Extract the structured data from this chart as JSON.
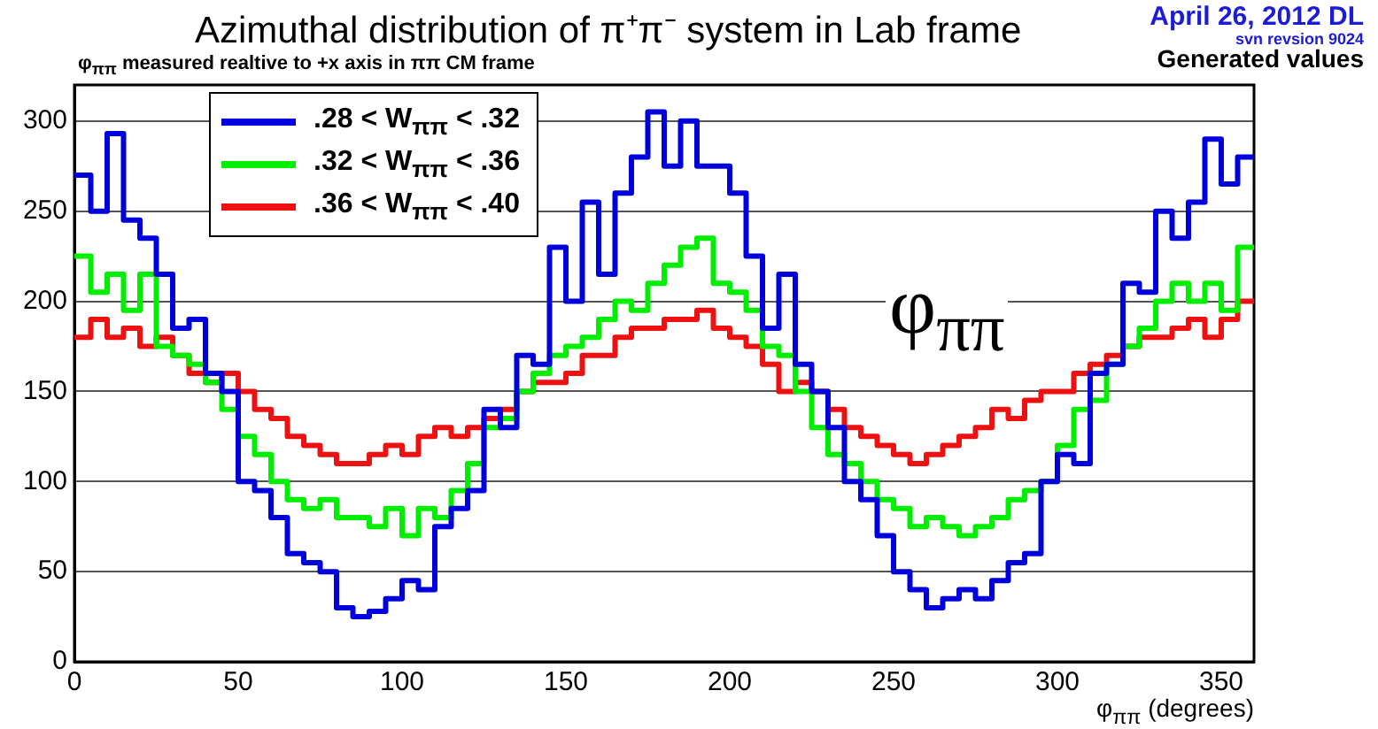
{
  "chart_data": {
    "type": "histogram",
    "title": "Azimuthal distribution of π⁺π⁻ system in Lab frame",
    "subtitle": "φ$_{ππ}$ measured realtive to +x axis in ππ CM frame",
    "xlabel": "φ$_{ππ}$ (degrees)",
    "annotations": [
      "April 26, 2012 DL",
      "svn revsion 9024",
      "Generated values",
      "φ$_{ππ}$"
    ],
    "bins": [
      0,
      5,
      10,
      15,
      20,
      25,
      30,
      35,
      40,
      45,
      50,
      55,
      60,
      65,
      70,
      75,
      80,
      85,
      90,
      95,
      100,
      105,
      110,
      115,
      120,
      125,
      130,
      135,
      140,
      145,
      150,
      155,
      160,
      165,
      170,
      175,
      180,
      185,
      190,
      195,
      200,
      205,
      210,
      215,
      220,
      225,
      230,
      235,
      240,
      245,
      250,
      255,
      260,
      265,
      270,
      275,
      280,
      285,
      290,
      295,
      300,
      305,
      310,
      315,
      320,
      325,
      330,
      335,
      340,
      345,
      350,
      355,
      360
    ],
    "series": [
      {
        "name": ".28 < W$_{ππ}$ < .32",
        "color": "#0000dd",
        "values": [
          270,
          250,
          293,
          245,
          235,
          215,
          185,
          190,
          160,
          150,
          100,
          95,
          80,
          60,
          55,
          50,
          30,
          25,
          28,
          35,
          45,
          40,
          75,
          85,
          95,
          140,
          130,
          170,
          165,
          230,
          200,
          255,
          215,
          260,
          280,
          305,
          275,
          300,
          275,
          275,
          260,
          225,
          185,
          215,
          165,
          150,
          130,
          100,
          90,
          70,
          50,
          40,
          30,
          35,
          40,
          35,
          45,
          55,
          60,
          100,
          115,
          110,
          160,
          165,
          210,
          205,
          250,
          235,
          255,
          290,
          265,
          280
        ]
      },
      {
        "name": ".32 < W$_{ππ}$ < .36",
        "color": "#00ee00",
        "values": [
          225,
          205,
          215,
          195,
          215,
          175,
          170,
          165,
          155,
          140,
          125,
          115,
          100,
          90,
          85,
          90,
          80,
          80,
          75,
          85,
          70,
          85,
          80,
          95,
          110,
          130,
          135,
          150,
          160,
          170,
          175,
          180,
          190,
          200,
          195,
          210,
          220,
          230,
          235,
          210,
          205,
          195,
          175,
          170,
          150,
          130,
          115,
          110,
          100,
          90,
          85,
          75,
          80,
          75,
          70,
          75,
          80,
          90,
          95,
          100,
          120,
          140,
          145,
          165,
          175,
          185,
          200,
          210,
          200,
          210,
          195,
          230
        ]
      },
      {
        "name": ".36 < W$_{ππ}$ < .40",
        "color": "#ee1111",
        "values": [
          180,
          190,
          180,
          185,
          175,
          180,
          170,
          160,
          155,
          160,
          150,
          140,
          135,
          125,
          120,
          115,
          110,
          110,
          115,
          120,
          115,
          125,
          130,
          125,
          130,
          135,
          140,
          150,
          155,
          155,
          160,
          170,
          170,
          180,
          185,
          185,
          190,
          190,
          195,
          185,
          180,
          175,
          165,
          150,
          155,
          150,
          140,
          130,
          125,
          120,
          115,
          110,
          115,
          120,
          125,
          130,
          140,
          135,
          145,
          150,
          150,
          160,
          165,
          170,
          175,
          180,
          180,
          185,
          190,
          180,
          190,
          200
        ]
      }
    ],
    "xlim": [
      0,
      360
    ],
    "ylim": [
      0,
      320
    ],
    "xticks": [
      0,
      50,
      100,
      150,
      200,
      250,
      300,
      350
    ],
    "yticks": [
      0,
      50,
      100,
      150,
      200,
      250,
      300
    ],
    "grid": "y",
    "legend": "top left",
    "line_style": "solid"
  }
}
